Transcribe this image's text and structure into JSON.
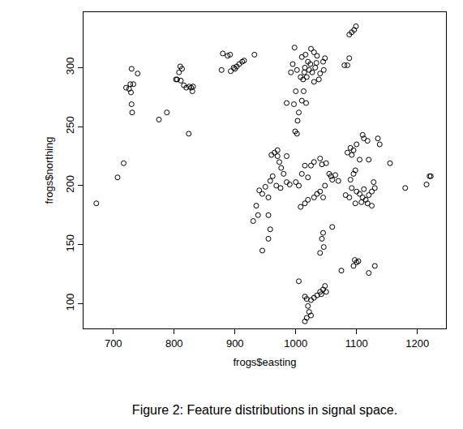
{
  "chart_data": {
    "type": "scatter",
    "title": "Figure 2: Feature distributions in signal space.",
    "x_label": "frogs$easting",
    "y_label": "frogs$northing",
    "color": "#000000",
    "marker": "open-circle",
    "grid": false,
    "xlim": [
      651,
      1247
    ],
    "xticks": [
      700,
      800,
      900,
      1000,
      1100,
      1200
    ],
    "ylim": [
      79,
      347
    ],
    "yticks": [
      100,
      150,
      200,
      250,
      300
    ],
    "x": [
      672,
      707,
      717,
      726,
      730,
      733,
      728,
      729,
      730,
      731,
      740,
      721,
      775,
      788,
      824,
      805,
      808,
      810,
      813,
      811,
      803,
      820,
      825,
      828,
      830,
      831,
      816,
      878,
      880,
      888,
      892,
      893,
      898,
      903,
      907,
      912,
      915,
      932,
      900,
      998,
      1010,
      1016,
      1020,
      1025,
      1030,
      1035,
      1015,
      1022,
      1027,
      1032,
      1045,
      1048,
      1040,
      1038,
      1030,
      1018,
      1012,
      1008,
      1014,
      995,
      992,
      1002,
      1046,
      1034,
      1024,
      1080,
      1085,
      1088,
      1092,
      1096,
      1099,
      1088,
      1000,
      985,
      997,
      1005,
      1010,
      1013,
      1017,
      1003,
      999,
      1002,
      960,
      965,
      970,
      973,
      976,
      980,
      985,
      962,
      958,
      950,
      968,
      975,
      990,
      1000,
      1005,
      1010,
      1015,
      1025,
      1020,
      1030,
      1040,
      1043,
      1050,
      1055,
      1058,
      1060,
      1065,
      1070,
      1048,
      1040,
      1035,
      1030,
      1020,
      1015,
      1008,
      1045,
      940,
      945,
      935,
      938,
      930,
      955,
      955,
      958,
      955,
      945,
      970,
      985,
      1085,
      1090,
      1095,
      1092,
      1100,
      1110,
      1112,
      1118,
      1120,
      1105,
      1098,
      1095,
      1090,
      1092,
      1100,
      1105,
      1110,
      1115,
      1120,
      1125,
      1130,
      1128,
      1098,
      1108,
      1118,
      1125,
      1112,
      1135,
      1138,
      1155,
      1180,
      1215,
      1220,
      1222,
      1082,
      1088,
      1060,
      1045,
      1043,
      1046,
      1040,
      1075,
      1095,
      1100,
      1097,
      1103,
      1120,
      1130,
      1005,
      1015,
      1018,
      1020,
      1022,
      1018,
      1025,
      1015,
      1030,
      1035,
      1040,
      1045,
      1048,
      1042,
      1050,
      1025
    ],
    "values": [
      185,
      207,
      219,
      282,
      299,
      286,
      286,
      279,
      269,
      262,
      295,
      283,
      256,
      262,
      244,
      290,
      296,
      301,
      299,
      289,
      290,
      283,
      284,
      283,
      280,
      284,
      285,
      298,
      312,
      310,
      311,
      297,
      300,
      301,
      303,
      305,
      306,
      311,
      299,
      317,
      309,
      311,
      305,
      316,
      313,
      310,
      300,
      298,
      296,
      300,
      305,
      308,
      295,
      290,
      288,
      292,
      290,
      292,
      296,
      303,
      296,
      298,
      298,
      304,
      303,
      302,
      302,
      328,
      330,
      332,
      335,
      308,
      280,
      270,
      269,
      262,
      272,
      280,
      270,
      255,
      246,
      244,
      226,
      228,
      225,
      220,
      215,
      210,
      203,
      208,
      204,
      199,
      200,
      198,
      201,
      203,
      200,
      210,
      217,
      217,
      207,
      220,
      223,
      218,
      219,
      210,
      208,
      205,
      209,
      204,
      200,
      195,
      193,
      190,
      188,
      185,
      182,
      190,
      196,
      193,
      183,
      175,
      170,
      190,
      175,
      163,
      155,
      145,
      230,
      225,
      228,
      232,
      230,
      226,
      235,
      243,
      240,
      238,
      222,
      222,
      213,
      210,
      205,
      198,
      195,
      193,
      190,
      188,
      192,
      195,
      198,
      203,
      185,
      186,
      185,
      183,
      197,
      240,
      235,
      219,
      198,
      201,
      208,
      208,
      192,
      190,
      165,
      160,
      155,
      148,
      143,
      128,
      132,
      135,
      137,
      136,
      126,
      132,
      119,
      106,
      104,
      98,
      93,
      88,
      90,
      85,
      105,
      107,
      110,
      112,
      115,
      108,
      110,
      103
    ]
  }
}
